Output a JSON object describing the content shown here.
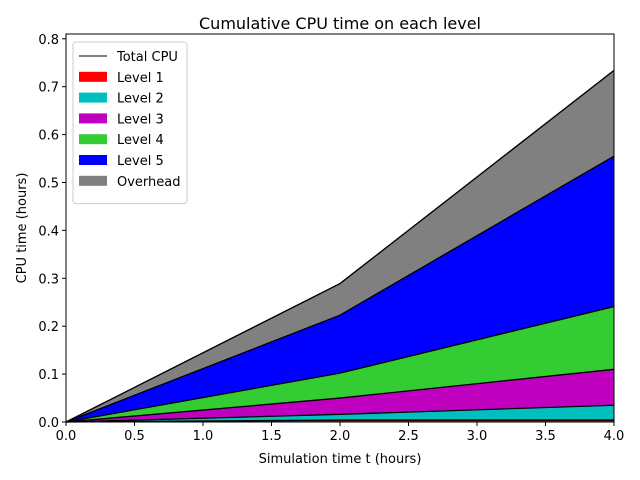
{
  "chart_data": {
    "type": "area",
    "title": "Cumulative CPU time on each level",
    "xlabel": "Simulation time t (hours)",
    "ylabel": "CPU time (hours)",
    "xlim": [
      0.0,
      4.0
    ],
    "ylim": [
      0.0,
      0.81
    ],
    "xticks": [
      "0.0",
      "0.5",
      "1.0",
      "1.5",
      "2.0",
      "2.5",
      "3.0",
      "3.5",
      "4.0"
    ],
    "yticks": [
      "0.0",
      "0.1",
      "0.2",
      "0.3",
      "0.4",
      "0.5",
      "0.6",
      "0.7",
      "0.8"
    ],
    "legend_position": "top-left",
    "x": [
      0.0,
      2.0,
      4.0
    ],
    "total_line": {
      "name": "Total CPU",
      "color": "#000000",
      "values": [
        0.0,
        0.289,
        0.734
      ]
    },
    "series": [
      {
        "name": "Level 1",
        "color": "#ff0000",
        "values": [
          0.0,
          0.004,
          0.004
        ]
      },
      {
        "name": "Level 2",
        "color": "#00bfbf",
        "values": [
          0.0,
          0.012,
          0.031
        ]
      },
      {
        "name": "Level 3",
        "color": "#bf00bf",
        "values": [
          0.0,
          0.034,
          0.075
        ]
      },
      {
        "name": "Level 4",
        "color": "#33cc33",
        "values": [
          0.0,
          0.052,
          0.131
        ]
      },
      {
        "name": "Level 5",
        "color": "#0000ff",
        "values": [
          0.0,
          0.121,
          0.314
        ]
      },
      {
        "name": "Overhead",
        "color": "#808080",
        "values": [
          0.0,
          0.066,
          0.179
        ]
      }
    ]
  }
}
